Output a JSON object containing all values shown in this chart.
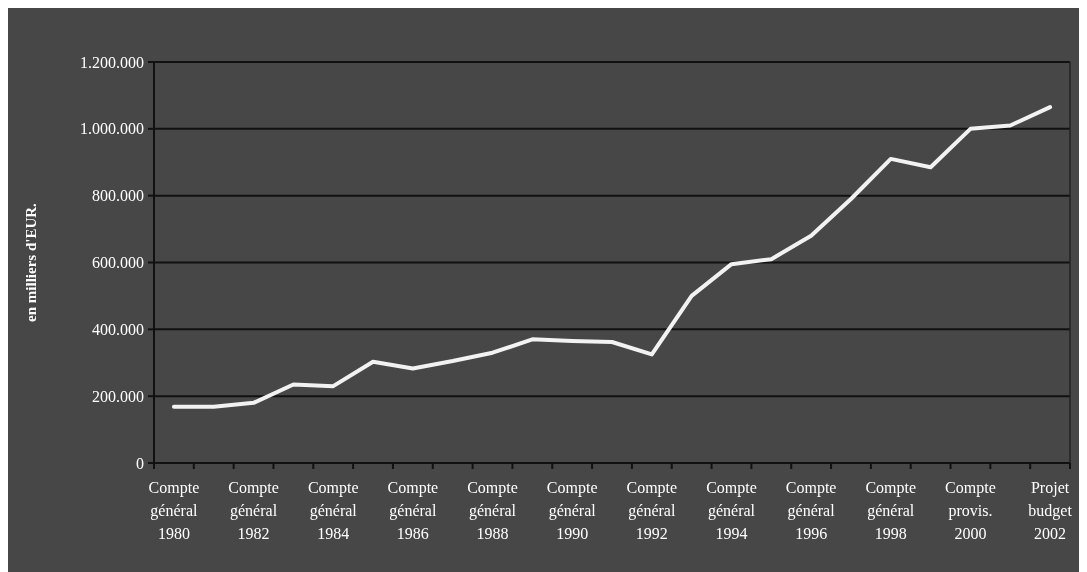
{
  "chart_data": {
    "type": "line",
    "ylabel": "en milliers d'EUR.",
    "categories": [
      "Compte général 1980",
      null,
      "Compte général 1982",
      null,
      "Compte général 1984",
      null,
      "Compte général 1986",
      null,
      "Compte général 1988",
      null,
      "Compte général 1990",
      null,
      "Compte général 1992",
      null,
      "Compte général 1994",
      null,
      "Compte général 1996",
      null,
      "Compte général 1998",
      null,
      "Compte provis. 2000",
      null,
      "Projet budget 2002"
    ],
    "series": [
      {
        "color": "#f2f2f2",
        "values": [
          168000,
          168000,
          180000,
          235000,
          230000,
          303000,
          283000,
          305000,
          330000,
          370000,
          365000,
          362000,
          325000,
          500000,
          595000,
          610000,
          680000,
          790000,
          910000,
          885000,
          1000000,
          1010000,
          1065000
        ]
      }
    ],
    "ylim": [
      0,
      1200000
    ],
    "yticks": [
      0,
      {
        "value": 200000,
        "label": "200.000"
      },
      {
        "value": 400000,
        "label": "400.000"
      },
      {
        "value": 600000,
        "label": "600.000"
      },
      {
        "value": 800000,
        "label": "800.000"
      },
      {
        "value": 1000000,
        "label": "1.000.000"
      },
      {
        "value": 1200000,
        "label": "1.200.000"
      }
    ],
    "grid": "y",
    "marker": "none",
    "line_style": "solid"
  }
}
